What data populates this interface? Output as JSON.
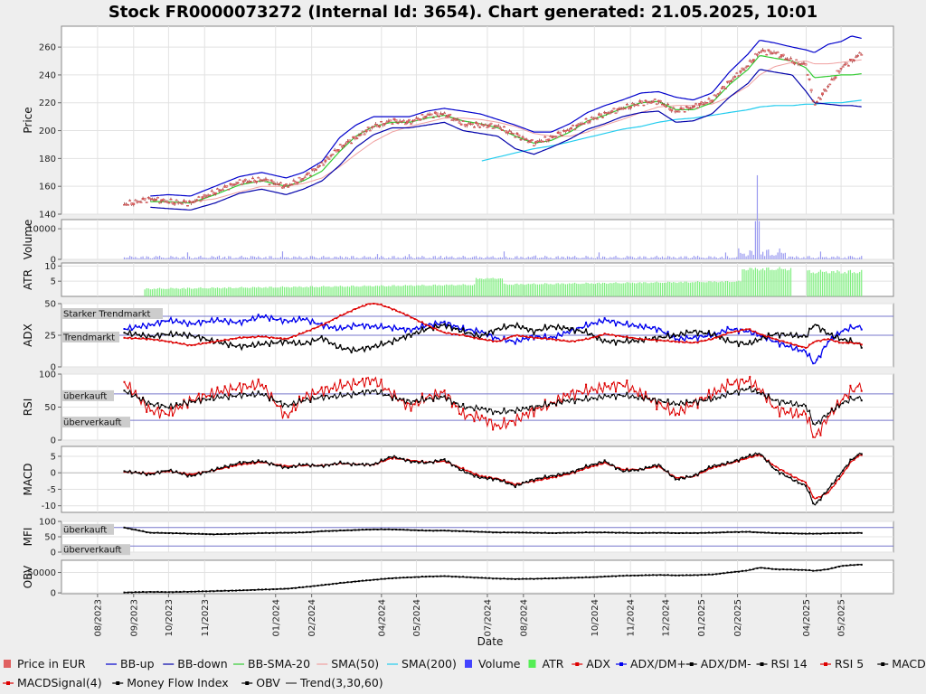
{
  "title": "Stock FR0000073272 (Internal Id: 3654). Chart generated: 21.05.2025, 10:01",
  "xlabel": "Date",
  "x_ticks": [
    "08/2023",
    "09/2023",
    "10/2023",
    "11/2023",
    "01/2024",
    "02/2024",
    "04/2024",
    "05/2024",
    "07/2024",
    "08/2024",
    "10/2024",
    "11/2024",
    "12/2024",
    "01/2025",
    "02/2025",
    "04/2025",
    "05/2025"
  ],
  "colors": {
    "price_up": "#e06060",
    "price_down": "#e06060",
    "bb_up": "#0000cc",
    "bb_down": "#0000aa",
    "bb_sma": "#33cc33",
    "sma50": "#f0a0a0",
    "sma200": "#22ccee",
    "volume": "#4444ff",
    "atr": "#55ee55",
    "adx": "#dd0000",
    "dm_plus": "#0000ee",
    "dm_minus": "#000000",
    "rsi14": "#000000",
    "rsi5": "#dd0000",
    "macd": "#000000",
    "macd_signal": "#dd0000",
    "mfi": "#000000",
    "obv": "#000000"
  },
  "panels": {
    "price": {
      "ylabel": "Price",
      "ticks": [
        "140",
        "160",
        "180",
        "200",
        "220",
        "240",
        "260"
      ]
    },
    "volume": {
      "ylabel": "Volume",
      "ticks": [
        "0",
        "10000"
      ]
    },
    "atr": {
      "ylabel": "ATR",
      "ticks": [
        "5",
        "10"
      ]
    },
    "adx": {
      "ylabel": "ADX",
      "ticks": [
        "0",
        "25",
        "50"
      ],
      "labels": [
        "Starker Trendmarkt",
        "Trendmarkt"
      ]
    },
    "rsi": {
      "ylabel": "RSI",
      "ticks": [
        "0",
        "50",
        "100"
      ],
      "labels": [
        "überkauft",
        "überverkauft"
      ]
    },
    "macd": {
      "ylabel": "MACD",
      "ticks": [
        "-10",
        "-5",
        "0",
        "5"
      ]
    },
    "mfi": {
      "ylabel": "MFI",
      "ticks": [
        "0",
        "50",
        "100"
      ],
      "labels": [
        "überkauft",
        "überverkauft"
      ]
    },
    "obv": {
      "ylabel": "OBV",
      "ticks": [
        "0",
        "50000"
      ]
    }
  },
  "legend": {
    "row1": [
      {
        "label": "Price in EUR",
        "icon": "square-icon",
        "color": "#e06060"
      },
      {
        "label": "BB-up",
        "icon": "line-icon",
        "color": "#0000cc"
      },
      {
        "label": "BB-down",
        "icon": "line-icon",
        "color": "#0000aa"
      },
      {
        "label": "BB-SMA-20",
        "icon": "line-icon",
        "color": "#33cc33"
      },
      {
        "label": "SMA(50)",
        "icon": "line-icon",
        "color": "#f0a0a0"
      },
      {
        "label": "SMA(200)",
        "icon": "line-icon",
        "color": "#22ccee"
      },
      {
        "label": "Volume",
        "icon": "square-icon",
        "color": "#4444ff"
      },
      {
        "label": "ATR",
        "icon": "square-icon",
        "color": "#55ee55"
      },
      {
        "label": "ADX",
        "icon": "marker-line-icon",
        "color": "#dd0000"
      },
      {
        "label": "ADX/DM+",
        "icon": "marker-line-icon",
        "color": "#0000ee"
      },
      {
        "label": "ADX/DM-",
        "icon": "marker-line-icon",
        "color": "#000000"
      },
      {
        "label": "RSI 14",
        "icon": "marker-line-icon",
        "color": "#000000"
      },
      {
        "label": "RSI 5",
        "icon": "marker-line-icon",
        "color": "#dd0000"
      },
      {
        "label": "MACD(5,13)",
        "icon": "marker-line-icon",
        "color": "#000000"
      }
    ],
    "row2": [
      {
        "label": "MACDSignal(4)",
        "icon": "marker-line-icon",
        "color": "#dd0000"
      },
      {
        "label": "Money Flow Index",
        "icon": "marker-line-icon",
        "color": "#000000"
      },
      {
        "label": "OBV",
        "icon": "marker-line-icon",
        "color": "#000000"
      },
      {
        "label": "Trend(3,30,60)",
        "icon": "line-icon",
        "color": "#333333"
      }
    ]
  },
  "chart_data": {
    "type": "line",
    "title": "Stock FR0000073272 (Internal Id: 3654). Chart generated: 21.05.2025, 10:01",
    "xlabel": "Date",
    "ylabel": "Price",
    "ylim": [
      140,
      275
    ],
    "x": [
      "2023-08-24",
      "2023-09-15",
      "2023-10-01",
      "2023-10-20",
      "2023-11-10",
      "2023-12-01",
      "2023-12-20",
      "2024-01-10",
      "2024-01-25",
      "2024-02-10",
      "2024-02-25",
      "2024-03-10",
      "2024-03-25",
      "2024-04-10",
      "2024-04-25",
      "2024-05-10",
      "2024-05-25",
      "2024-06-10",
      "2024-06-25",
      "2024-07-10",
      "2024-07-25",
      "2024-08-10",
      "2024-08-25",
      "2024-09-10",
      "2024-09-25",
      "2024-10-10",
      "2024-10-25",
      "2024-11-10",
      "2024-11-25",
      "2024-12-10",
      "2024-12-25",
      "2025-01-10",
      "2025-01-25",
      "2025-02-10",
      "2025-02-20",
      "2025-03-05",
      "2025-03-20",
      "2025-04-01",
      "2025-04-08",
      "2025-04-20",
      "2025-05-01",
      "2025-05-10",
      "2025-05-20"
    ],
    "series": [
      {
        "name": "Price in EUR",
        "values": [
          147,
          151,
          149,
          148,
          156,
          163,
          165,
          160,
          166,
          176,
          188,
          195,
          203,
          207,
          206,
          211,
          212,
          205,
          204,
          203,
          197,
          191,
          195,
          201,
          207,
          212,
          216,
          220,
          221,
          214,
          217,
          222,
          235,
          247,
          257,
          256,
          250,
          247,
          218,
          232,
          245,
          250,
          257
        ]
      },
      {
        "name": "BB-up",
        "values": [
          null,
          153,
          154,
          153,
          160,
          167,
          170,
          166,
          170,
          178,
          195,
          204,
          210,
          210,
          210,
          214,
          216,
          214,
          212,
          208,
          204,
          199,
          199,
          205,
          213,
          218,
          222,
          227,
          228,
          224,
          222,
          227,
          242,
          255,
          265,
          263,
          260,
          258,
          256,
          262,
          264,
          268,
          266
        ]
      },
      {
        "name": "BB-down",
        "values": [
          null,
          145,
          144,
          143,
          148,
          155,
          158,
          154,
          158,
          164,
          175,
          188,
          197,
          202,
          202,
          204,
          206,
          200,
          198,
          196,
          187,
          183,
          188,
          194,
          201,
          205,
          210,
          213,
          214,
          206,
          207,
          212,
          224,
          234,
          244,
          242,
          240,
          228,
          220,
          219,
          218,
          218,
          217
        ]
      },
      {
        "name": "BB-SMA-20",
        "values": [
          null,
          149,
          149,
          148,
          154,
          161,
          164,
          160,
          164,
          171,
          185,
          196,
          203,
          206,
          206,
          209,
          211,
          207,
          205,
          202,
          196,
          191,
          193,
          199,
          207,
          211,
          216,
          220,
          221,
          215,
          215,
          220,
          233,
          244,
          254,
          252,
          250,
          245,
          238,
          239,
          240,
          240,
          241
        ]
      },
      {
        "name": "SMA(50)",
        "values": [
          null,
          null,
          null,
          149,
          151,
          156,
          160,
          160,
          162,
          166,
          174,
          183,
          192,
          199,
          203,
          206,
          209,
          209,
          208,
          206,
          203,
          198,
          196,
          196,
          199,
          204,
          208,
          213,
          217,
          218,
          218,
          219,
          224,
          232,
          240,
          246,
          249,
          250,
          248,
          248,
          249,
          250,
          251
        ]
      },
      {
        "name": "SMA(200)",
        "values": [
          null,
          null,
          null,
          null,
          null,
          null,
          null,
          null,
          null,
          null,
          null,
          null,
          null,
          null,
          null,
          null,
          null,
          null,
          178,
          181,
          184,
          187,
          189,
          192,
          195,
          198,
          201,
          203,
          206,
          208,
          209,
          211,
          213,
          215,
          217,
          218,
          218,
          219,
          219,
          220,
          220,
          221,
          222
        ]
      },
      {
        "name": "ADX",
        "values": [
          23,
          22,
          20,
          17,
          20,
          23,
          24,
          22,
          27,
          33,
          40,
          46,
          51,
          46,
          40,
          33,
          27,
          25,
          22,
          20,
          25,
          23,
          22,
          20,
          22,
          26,
          24,
          22,
          21,
          20,
          19,
          22,
          27,
          30,
          26,
          22,
          18,
          15,
          20,
          22,
          19,
          19,
          18
        ]
      },
      {
        "name": "ADX/DM+",
        "values": [
          30,
          33,
          37,
          34,
          37,
          35,
          40,
          36,
          38,
          33,
          30,
          33,
          32,
          31,
          29,
          33,
          35,
          30,
          28,
          22,
          20,
          24,
          23,
          28,
          33,
          37,
          34,
          32,
          30,
          22,
          23,
          25,
          30,
          28,
          25,
          20,
          15,
          12,
          2,
          20,
          28,
          31,
          32
        ]
      },
      {
        "name": "ADX/DM-",
        "values": [
          27,
          24,
          26,
          25,
          20,
          16,
          18,
          20,
          18,
          23,
          15,
          13,
          16,
          20,
          25,
          30,
          33,
          28,
          24,
          30,
          33,
          28,
          32,
          30,
          27,
          20,
          20,
          21,
          23,
          25,
          28,
          26,
          20,
          18,
          22,
          26,
          25,
          24,
          34,
          26,
          22,
          20,
          17
        ]
      },
      {
        "name": "RSI 14",
        "values": [
          75,
          55,
          50,
          58,
          64,
          68,
          70,
          52,
          60,
          65,
          67,
          70,
          75,
          65,
          58,
          62,
          65,
          50,
          48,
          42,
          45,
          50,
          55,
          60,
          62,
          66,
          68,
          64,
          60,
          55,
          58,
          62,
          70,
          78,
          72,
          60,
          55,
          52,
          22,
          40,
          55,
          62,
          65
        ]
      },
      {
        "name": "RSI 5",
        "values": [
          88,
          45,
          40,
          60,
          72,
          80,
          85,
          35,
          65,
          75,
          82,
          86,
          92,
          70,
          50,
          65,
          72,
          38,
          35,
          20,
          30,
          45,
          55,
          70,
          75,
          80,
          85,
          70,
          55,
          40,
          55,
          70,
          85,
          90,
          78,
          48,
          40,
          40,
          2,
          35,
          60,
          75,
          85
        ]
      },
      {
        "name": "MACD(5,13)",
        "values": [
          0.5,
          -0.5,
          0.8,
          -1,
          1,
          3,
          3.5,
          1.5,
          2.5,
          2,
          3,
          2.5,
          2.5,
          5,
          3.5,
          3,
          4,
          0.5,
          -1.5,
          -2,
          -4,
          -2,
          -1,
          0,
          2,
          3.5,
          0.5,
          1,
          2.5,
          -2,
          -1,
          2,
          3,
          5,
          6,
          1,
          -2,
          -4,
          -10,
          -5,
          0,
          4,
          6.5
        ]
      },
      {
        "name": "MACDSignal(4)",
        "values": [
          0.3,
          -0.2,
          0.5,
          -0.5,
          0.8,
          2.5,
          3.2,
          2,
          2.2,
          2.2,
          2.8,
          2.6,
          2.4,
          4.5,
          3.8,
          3.2,
          3.5,
          1.2,
          -1,
          -1.8,
          -3.5,
          -2.5,
          -1.5,
          -0.3,
          1.5,
          3,
          1,
          1,
          2,
          -1.5,
          -1.2,
          1.5,
          2.8,
          4.5,
          5.5,
          2,
          -1,
          -3,
          -8,
          -6,
          -1,
          3.5,
          6
        ]
      },
      {
        "name": "Money Flow Index",
        "values": [
          80,
          63,
          62,
          60,
          58,
          60,
          62,
          63,
          64,
          68,
          70,
          72,
          74,
          74,
          72,
          70,
          70,
          68,
          66,
          64,
          64,
          63,
          62,
          63,
          64,
          64,
          63,
          62,
          63,
          62,
          62,
          63,
          65,
          66,
          64,
          62,
          61,
          60,
          60,
          61,
          62,
          62,
          63
        ]
      },
      {
        "name": "OBV",
        "values": [
          1000,
          2500,
          2000,
          3000,
          4500,
          6000,
          8000,
          10000,
          14000,
          19000,
          24000,
          28000,
          32000,
          36000,
          38000,
          40000,
          41000,
          39000,
          37000,
          35000,
          34000,
          34500,
          35500,
          37000,
          38000,
          40000,
          42000,
          43000,
          44000,
          43000,
          43500,
          45000,
          50000,
          55000,
          62000,
          58000,
          57000,
          56000,
          54000,
          58000,
          66000,
          68000,
          70000
        ]
      }
    ]
  }
}
